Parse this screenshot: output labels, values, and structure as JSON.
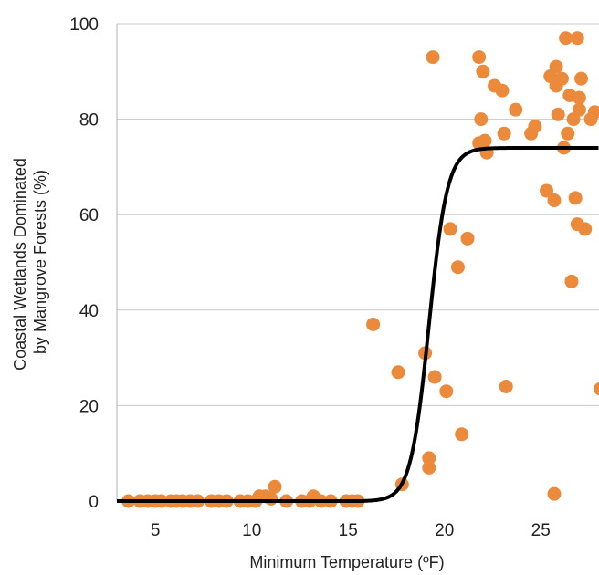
{
  "chart_data": {
    "type": "scatter",
    "xlabel": "Minimum Temperature (ºF)",
    "ylabel_lines": [
      "Coastal Wetlands Dominated",
      "by Mangrove Forests (%)"
    ],
    "xlim": [
      3,
      28
    ],
    "ylim": [
      0,
      100
    ],
    "xticks": [
      5,
      10,
      15,
      20,
      25
    ],
    "yticks": [
      0,
      20,
      40,
      60,
      80,
      100
    ],
    "grid": "horizontal",
    "point_color": "#ec8a3c",
    "curve_color": "#000000",
    "fit_curve": {
      "model": "logistic",
      "max": 74,
      "midpoint": 19.2,
      "steepness": 2.1,
      "start_x": 15.5
    },
    "points": [
      [
        3.6,
        0
      ],
      [
        4.2,
        0
      ],
      [
        4.6,
        0
      ],
      [
        5,
        0
      ],
      [
        5.3,
        0
      ],
      [
        5.8,
        0
      ],
      [
        6.1,
        0
      ],
      [
        6.4,
        0
      ],
      [
        6.8,
        0
      ],
      [
        7.2,
        0
      ],
      [
        7.9,
        0
      ],
      [
        8.3,
        0
      ],
      [
        8.7,
        0
      ],
      [
        9.4,
        0
      ],
      [
        9.8,
        0
      ],
      [
        10.2,
        0
      ],
      [
        10.4,
        1
      ],
      [
        10.7,
        1
      ],
      [
        11,
        0.5
      ],
      [
        11.2,
        3
      ],
      [
        11.8,
        0
      ],
      [
        12.6,
        0
      ],
      [
        13,
        0
      ],
      [
        13.2,
        1
      ],
      [
        13.6,
        0
      ],
      [
        14.1,
        0
      ],
      [
        14.9,
        0
      ],
      [
        15.2,
        0
      ],
      [
        15.5,
        0
      ],
      [
        16.3,
        37
      ],
      [
        17.6,
        27
      ],
      [
        17.8,
        3.5
      ],
      [
        19,
        31
      ],
      [
        19.2,
        9
      ],
      [
        19.2,
        7
      ],
      [
        19.4,
        93
      ],
      [
        19.5,
        26
      ],
      [
        20.1,
        23
      ],
      [
        20.3,
        57
      ],
      [
        20.7,
        49
      ],
      [
        20.9,
        14
      ],
      [
        21.2,
        55
      ],
      [
        21.8,
        93
      ],
      [
        21.9,
        80
      ],
      [
        22,
        90
      ],
      [
        21.8,
        75
      ],
      [
        22.1,
        75.5
      ],
      [
        22.2,
        73
      ],
      [
        22.6,
        87
      ],
      [
        23,
        86
      ],
      [
        23.1,
        77
      ],
      [
        23.2,
        24
      ],
      [
        23.7,
        82
      ],
      [
        24.5,
        77
      ],
      [
        24.7,
        78.5
      ],
      [
        25.3,
        65
      ],
      [
        25.5,
        89
      ],
      [
        25.7,
        63
      ],
      [
        25.8,
        87
      ],
      [
        25.8,
        91
      ],
      [
        25.9,
        81
      ],
      [
        26.1,
        88.5
      ],
      [
        26.2,
        74
      ],
      [
        26.3,
        97
      ],
      [
        26.4,
        77
      ],
      [
        26.5,
        85
      ],
      [
        26.6,
        46
      ],
      [
        26.7,
        80
      ],
      [
        26.8,
        63.5
      ],
      [
        26.9,
        97
      ],
      [
        26.9,
        58
      ],
      [
        27,
        84.5
      ],
      [
        27,
        82
      ],
      [
        27.1,
        88.5
      ],
      [
        27.3,
        57
      ],
      [
        27.6,
        80
      ],
      [
        27.8,
        81.5
      ],
      [
        25.7,
        1.5
      ],
      [
        28.1,
        23.5
      ]
    ]
  }
}
